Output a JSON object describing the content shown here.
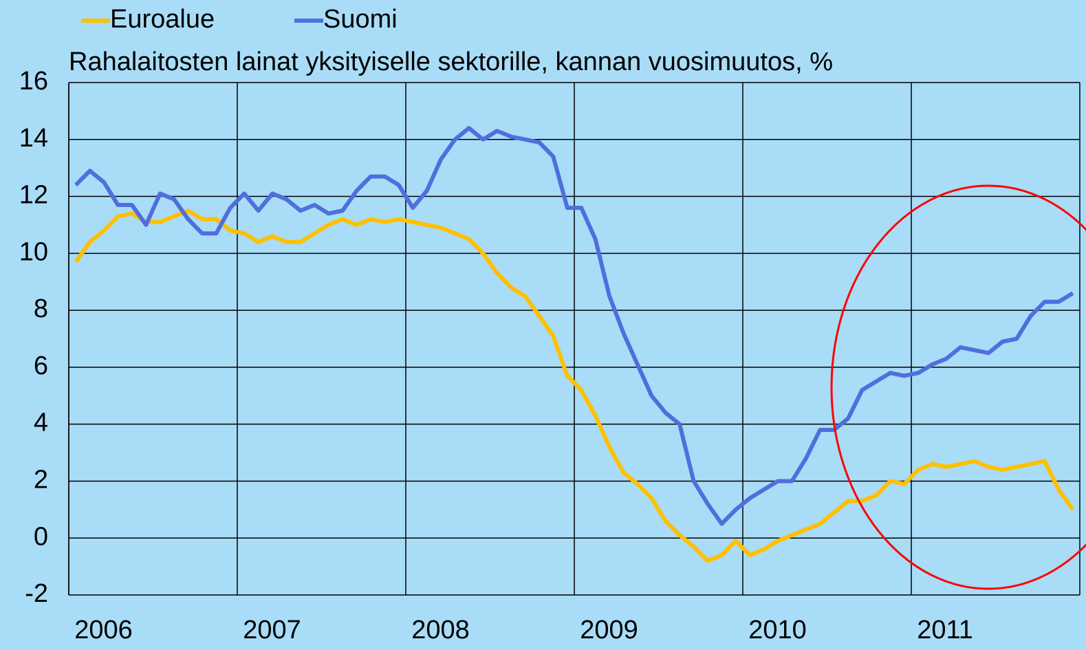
{
  "chart_data": {
    "type": "line",
    "title": "Rahalaitosten lainat yksityiselle sektorille, kannan vuosimuutos, %",
    "categories": [
      "2006",
      null,
      null,
      null,
      null,
      null,
      null,
      null,
      null,
      null,
      null,
      null,
      "2007",
      null,
      null,
      null,
      null,
      null,
      null,
      null,
      null,
      null,
      null,
      null,
      "2008",
      null,
      null,
      null,
      null,
      null,
      null,
      null,
      null,
      null,
      null,
      null,
      "2009",
      null,
      null,
      null,
      null,
      null,
      null,
      null,
      null,
      null,
      null,
      null,
      "2010",
      null,
      null,
      null,
      null,
      null,
      null,
      null,
      null,
      null,
      null,
      null,
      "2011",
      null,
      null,
      null,
      null,
      null,
      null,
      null,
      null,
      null,
      null,
      null
    ],
    "series": [
      {
        "name": "Euroalue",
        "color": "#ffc000",
        "values": [
          9.7,
          10.4,
          10.8,
          11.3,
          11.4,
          11.1,
          11.1,
          11.3,
          11.5,
          11.2,
          11.2,
          10.8,
          10.7,
          10.4,
          10.6,
          10.4,
          10.4,
          10.7,
          11.0,
          11.2,
          11.0,
          11.2,
          11.1,
          11.2,
          11.1,
          11.0,
          10.9,
          10.7,
          10.5,
          10.0,
          9.3,
          8.8,
          8.5,
          7.8,
          7.1,
          5.7,
          5.2,
          4.3,
          3.2,
          2.3,
          1.9,
          1.4,
          0.6,
          0.1,
          -0.3,
          -0.8,
          -0.6,
          -0.1,
          -0.6,
          -0.4,
          -0.1,
          0.1,
          0.3,
          0.5,
          0.9,
          1.3,
          1.3,
          1.5,
          2.0,
          1.9,
          2.4,
          2.6,
          2.5,
          2.6,
          2.7,
          2.5,
          2.4,
          2.5,
          2.6,
          2.7,
          1.7,
          1.0
        ]
      },
      {
        "name": "Suomi",
        "color": "#4f6fdc",
        "values": [
          12.4,
          12.9,
          12.5,
          11.7,
          11.7,
          11.0,
          12.1,
          11.9,
          11.2,
          10.7,
          10.7,
          11.6,
          12.1,
          11.5,
          12.1,
          11.9,
          11.5,
          11.7,
          11.4,
          11.5,
          12.2,
          12.7,
          12.7,
          12.4,
          11.6,
          12.2,
          13.3,
          14.0,
          14.4,
          14.0,
          14.3,
          14.1,
          14.0,
          13.9,
          13.4,
          11.6,
          11.6,
          10.5,
          8.5,
          7.2,
          6.1,
          5.0,
          4.4,
          4.0,
          2.0,
          1.2,
          0.5,
          1.0,
          1.4,
          1.7,
          2.0,
          2.0,
          2.8,
          3.8,
          3.8,
          4.2,
          5.2,
          5.5,
          5.8,
          5.7,
          5.8,
          6.1,
          6.3,
          6.7,
          6.6,
          6.5,
          6.9,
          7.0,
          7.8,
          8.3,
          8.3,
          8.6
        ]
      }
    ],
    "ylim": [
      -2,
      16
    ],
    "yticks": [
      -2,
      0,
      2,
      4,
      6,
      8,
      10,
      12,
      14,
      16
    ],
    "grid": true
  }
}
